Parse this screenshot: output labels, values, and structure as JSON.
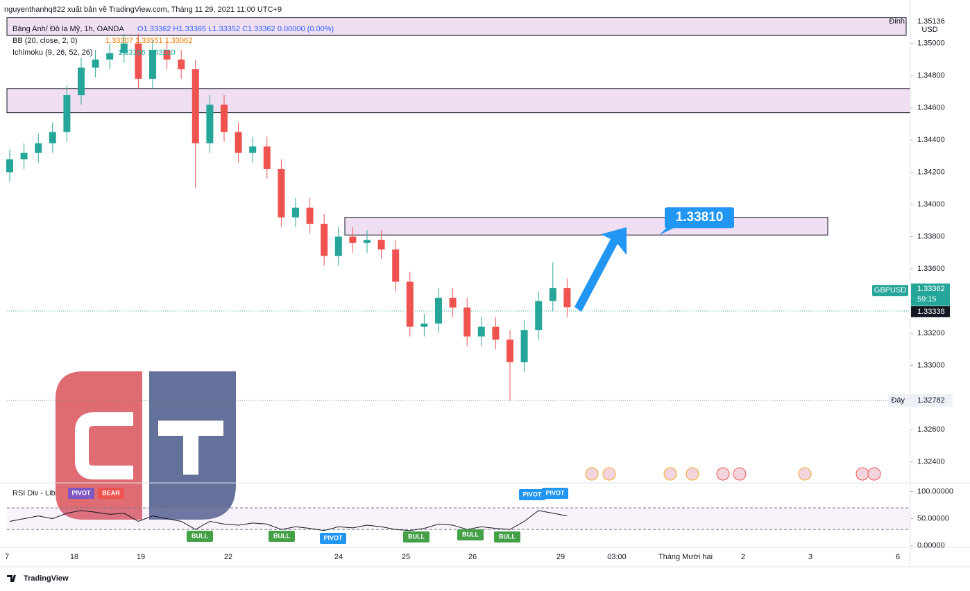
{
  "chart_data": {
    "type": "candlestick",
    "header": "nguyenthanhq822 xuất bản về TradingView.com, Tháng 11 29, 2021 11:00 UTC+9",
    "legend": [
      "Bảng Anh/ Đô la Mỹ, 1h, OANDA",
      "O1.33362 H1.33365 L1.33352 C1.33362 0.00000 (0.00%)",
      "BB (20, close, 2, 0)",
      "1.33307 1.33551 1.33062",
      "Ichimoku (9, 26, 52, 26)",
      "1.33166 1.33210"
    ],
    "currency": "USD",
    "footer": "TradingView",
    "up_color": "#26a69a",
    "down_color": "#ef5350",
    "open": [
      1.342,
      1.3428,
      1.3432,
      1.3438,
      1.3445,
      1.3468,
      1.3485,
      1.349,
      1.3494,
      1.35,
      1.3478,
      1.3496,
      1.349,
      1.3484,
      1.3438,
      1.3462,
      1.3445,
      1.3432,
      1.3436,
      1.3422,
      1.3392,
      1.3398,
      1.3388,
      1.3368,
      1.338,
      1.3376,
      1.3378,
      1.3372,
      1.3352,
      1.3324,
      1.3326,
      1.3342,
      1.3336,
      1.3318,
      1.3324,
      1.3316,
      1.3302,
      1.3322,
      1.334,
      1.3348
    ],
    "high": [
      1.3434,
      1.3438,
      1.3444,
      1.3451,
      1.3474,
      1.3491,
      1.3496,
      1.35,
      1.3506,
      1.3506,
      1.3502,
      1.3502,
      1.3496,
      1.349,
      1.3468,
      1.3468,
      1.3451,
      1.3442,
      1.3442,
      1.3428,
      1.3404,
      1.3404,
      1.3394,
      1.3386,
      1.3386,
      1.3384,
      1.3384,
      1.3378,
      1.3358,
      1.3332,
      1.3348,
      1.3348,
      1.3342,
      1.333,
      1.333,
      1.3322,
      1.3328,
      1.3346,
      1.3364,
      1.3354
    ],
    "low": [
      1.3414,
      1.3422,
      1.3426,
      1.3432,
      1.3439,
      1.3462,
      1.3479,
      1.3484,
      1.3488,
      1.3472,
      1.3472,
      1.3484,
      1.3478,
      1.341,
      1.3432,
      1.3439,
      1.3426,
      1.3426,
      1.3416,
      1.3386,
      1.3386,
      1.3382,
      1.3362,
      1.3362,
      1.337,
      1.337,
      1.3366,
      1.3346,
      1.3318,
      1.3318,
      1.332,
      1.333,
      1.3312,
      1.3312,
      1.331,
      1.3278,
      1.3296,
      1.3316,
      1.3334,
      1.333
    ],
    "close": [
      1.3428,
      1.3432,
      1.3438,
      1.3445,
      1.3468,
      1.3485,
      1.349,
      1.3494,
      1.35,
      1.3478,
      1.3496,
      1.349,
      1.3484,
      1.3438,
      1.3462,
      1.3445,
      1.3432,
      1.3436,
      1.3422,
      1.3392,
      1.3398,
      1.3388,
      1.3368,
      1.338,
      1.3376,
      1.3378,
      1.3372,
      1.3352,
      1.3324,
      1.3326,
      1.3342,
      1.3336,
      1.3318,
      1.3324,
      1.3316,
      1.3302,
      1.3322,
      1.334,
      1.3348,
      1.33362
    ],
    "ylim": [
      1.3227,
      1.3527
    ],
    "yticks": [
      {
        "value": 1.35,
        "label": "1.35000"
      },
      {
        "value": 1.348,
        "label": "1.34800"
      },
      {
        "value": 1.346,
        "label": "1.34600"
      },
      {
        "value": 1.344,
        "label": "1.34400"
      },
      {
        "value": 1.342,
        "label": "1.34200"
      },
      {
        "value": 1.34,
        "label": "1.34000"
      },
      {
        "value": 1.338,
        "label": "1.33800"
      },
      {
        "value": 1.336,
        "label": "1.33600"
      },
      {
        "value": 1.334,
        "label": "1.33400"
      },
      {
        "value": 1.332,
        "label": "1.33200"
      },
      {
        "value": 1.33,
        "label": "1.33000"
      },
      {
        "value": 1.328,
        "label": "1.32800"
      },
      {
        "value": 1.326,
        "label": "1.32600"
      },
      {
        "value": 1.324,
        "label": "1.32400"
      }
    ],
    "xticks": [
      "7",
      "18",
      "19",
      "22",
      "24",
      "25",
      "26",
      "29",
      "03:00",
      "Tháng Mười hai",
      "2",
      "3",
      "6"
    ],
    "zones": [
      {
        "top": 1.3516,
        "bottom": 1.3505
      },
      {
        "top": 1.3472,
        "bottom": 1.3457
      },
      {
        "top": 1.3392,
        "bottom": 1.3381
      }
    ],
    "target": {
      "value": 1.3381,
      "label": "1.33810"
    },
    "high_marker": {
      "name": "Đỉnh",
      "value": 1.35136,
      "label": "1.35136"
    },
    "low_marker": {
      "name": "Đáy",
      "value": 1.32782,
      "label": "1.32782"
    },
    "last_price": {
      "name": "GBPUSD",
      "value": 1.33362,
      "label": "1.33362",
      "countdown": "59:15"
    },
    "prev_close": {
      "value": 1.33338,
      "label": "1.33338"
    },
    "rsi": {
      "title": "RSI Div - Lib",
      "ylim": [
        -3,
        116
      ],
      "yticks": [
        {
          "value": 100,
          "label": "100.00000"
        },
        {
          "value": 50,
          "label": "50.00000"
        },
        {
          "value": 0,
          "label": "0.00000"
        }
      ],
      "levels": [
        70,
        30
      ],
      "values": [
        45,
        50,
        55,
        50,
        60,
        65,
        62,
        58,
        60,
        45,
        55,
        50,
        45,
        30,
        45,
        40,
        38,
        42,
        40,
        30,
        35,
        32,
        28,
        35,
        33,
        38,
        35,
        30,
        28,
        32,
        40,
        38,
        30,
        35,
        32,
        30,
        45,
        65,
        60,
        55
      ],
      "signals": [
        {
          "text": "PIVOT",
          "color": "#7e57c2"
        },
        {
          "text": "BEAR",
          "color": "#ef5350"
        },
        {
          "text": "BULL",
          "color": "#43a047"
        },
        {
          "text": "BULL",
          "color": "#43a047"
        },
        {
          "text": "PIVOT",
          "color": "#2196f3"
        },
        {
          "text": "BULL",
          "color": "#43a047"
        },
        {
          "text": "BULL",
          "color": "#43a047"
        },
        {
          "text": "BULL",
          "color": "#43a047"
        },
        {
          "text": "PIVOT",
          "color": "#2196f3"
        },
        {
          "text": "PIVOT",
          "color": "#2196f3"
        }
      ]
    }
  }
}
